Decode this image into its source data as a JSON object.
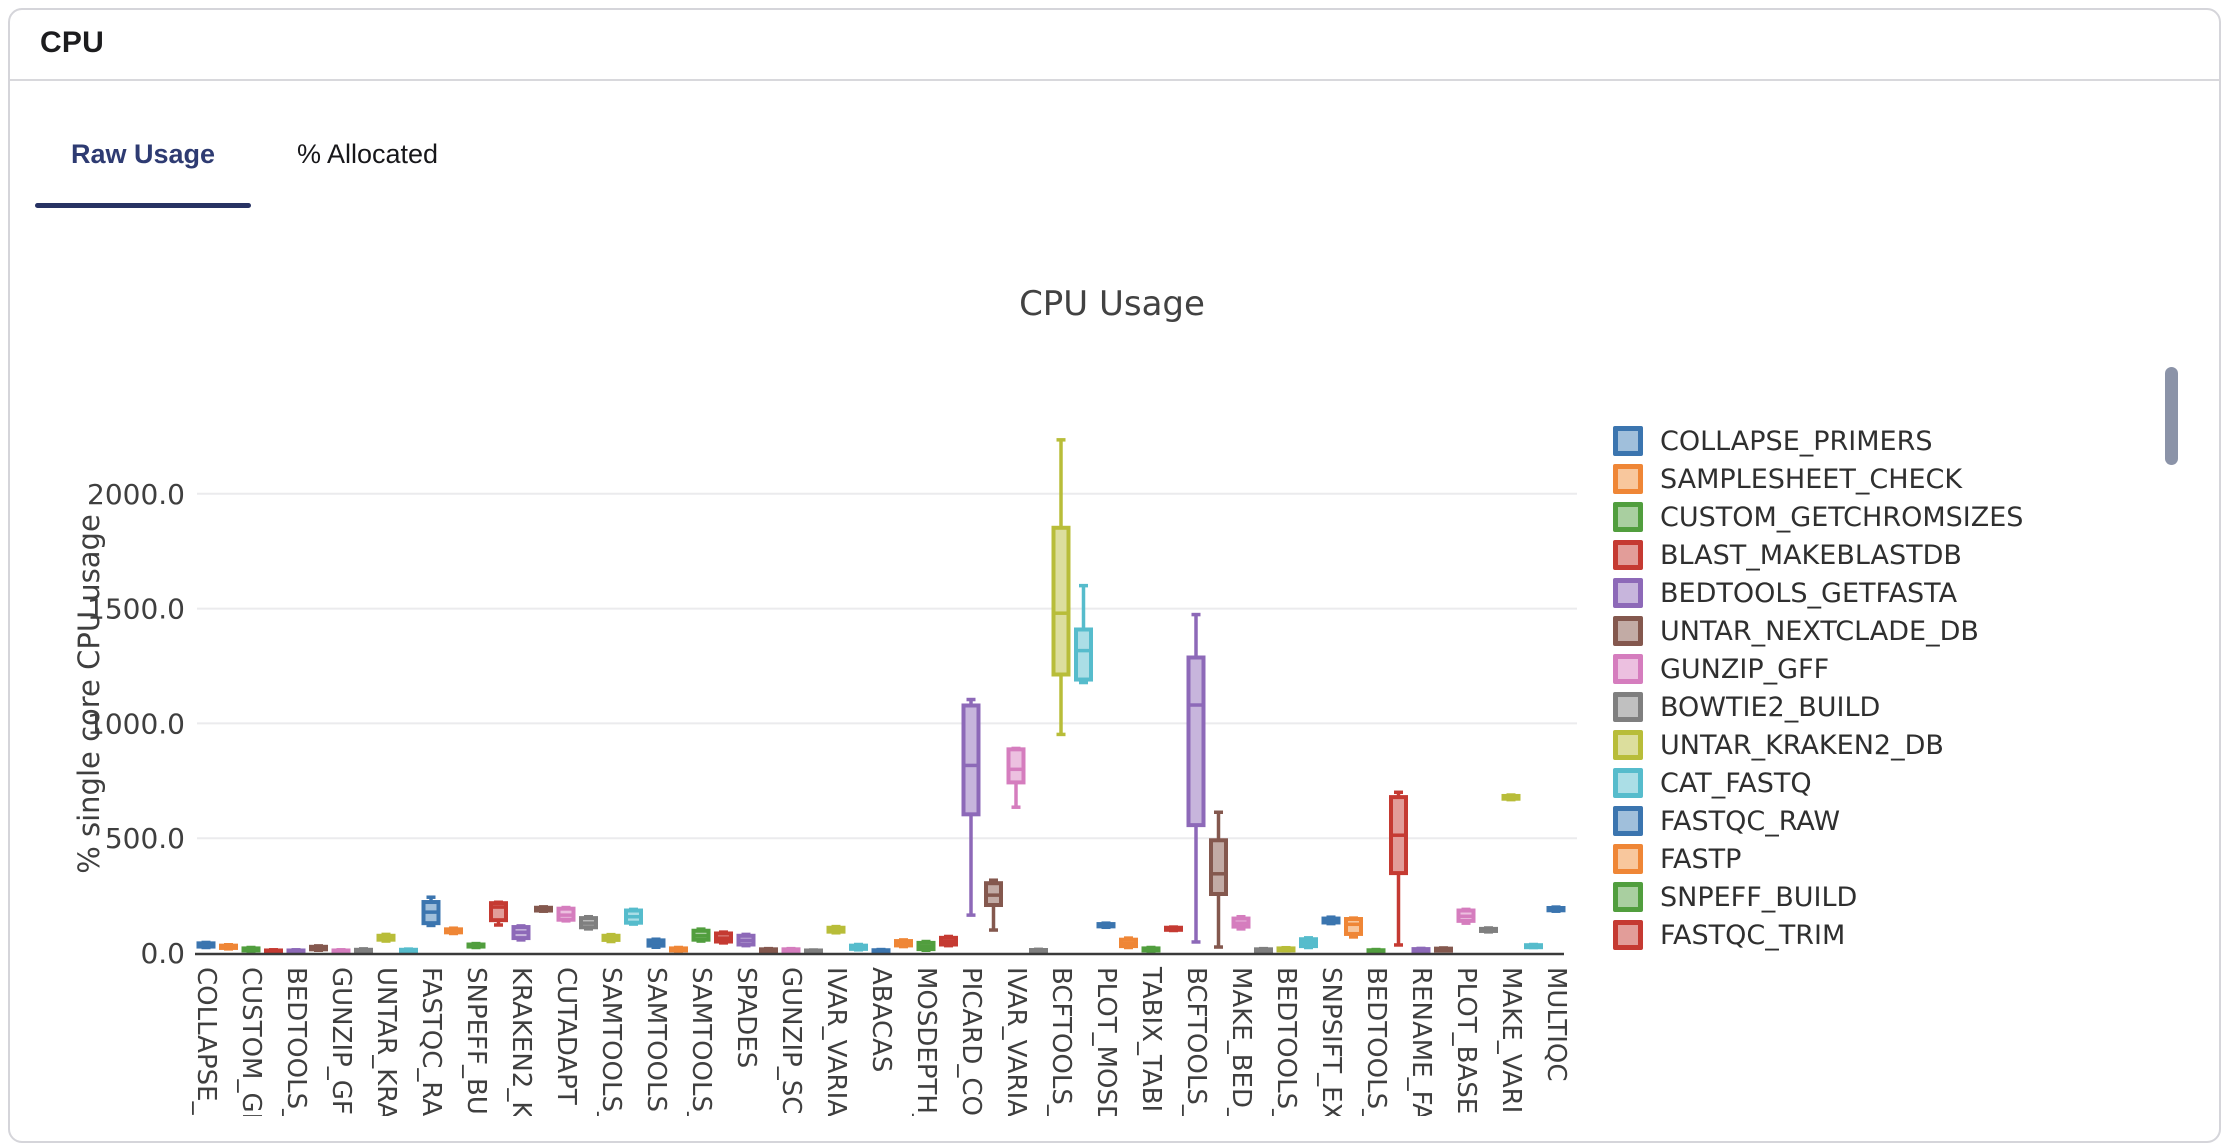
{
  "window": {
    "title": "CPU"
  },
  "tabs": [
    {
      "label": "Raw Usage",
      "active": true
    },
    {
      "label": "% Allocated",
      "active": false
    }
  ],
  "colors": {
    "card_border": "#d5d5da",
    "header_text": "#1c1c1e",
    "tab_active_text": "#2e3b72",
    "tab_underline": "#273263",
    "tab_inactive_text": "#17171a",
    "title_text": "#424242",
    "tick_text": "#3f3f3f",
    "axis_line": "#3a3a3a",
    "gridline": "#ebebed",
    "legend_text": "#2f2f2f",
    "scrollbar_thumb": "#8b93a8"
  },
  "chart_data": {
    "type": "box",
    "title": "CPU Usage",
    "xlabel": "",
    "ylabel": "% single core CPU usage",
    "ytick_values": [
      0,
      500,
      1000,
      1500,
      2000
    ],
    "ytick_labels": [
      "0.0",
      "500.0",
      "1000.0",
      "1500.0",
      "2000.0"
    ],
    "ylim": [
      0,
      2400
    ],
    "grid": true,
    "legend_position": "right",
    "color_cycle": [
      {
        "name": "blue",
        "stroke": "#3b75af",
        "fill": "#a0bfdb"
      },
      {
        "name": "orange",
        "stroke": "#ef8636",
        "fill": "#f8c79d"
      },
      {
        "name": "green",
        "stroke": "#519e3e",
        "fill": "#a9cfa0"
      },
      {
        "name": "red",
        "stroke": "#c53a32",
        "fill": "#e29d99"
      },
      {
        "name": "purple",
        "stroke": "#8d69b8",
        "fill": "#c7b5dc"
      },
      {
        "name": "brown",
        "stroke": "#84584e",
        "fill": "#c2aba5"
      },
      {
        "name": "pink",
        "stroke": "#d57dbe",
        "fill": "#ecc0e0"
      },
      {
        "name": "gray",
        "stroke": "#7f7f7f",
        "fill": "#c0c0c0"
      },
      {
        "name": "olive",
        "stroke": "#b8bd39",
        "fill": "#dcde9d"
      },
      {
        "name": "cyan",
        "stroke": "#56bccc",
        "fill": "#abdee6"
      }
    ],
    "legend": [
      {
        "label": "COLLAPSE_PRIMERS",
        "c": 0
      },
      {
        "label": "SAMPLESHEET_CHECK",
        "c": 1
      },
      {
        "label": "CUSTOM_GETCHROMSIZES",
        "c": 2
      },
      {
        "label": "BLAST_MAKEBLASTDB",
        "c": 3
      },
      {
        "label": "BEDTOOLS_GETFASTA",
        "c": 4
      },
      {
        "label": "UNTAR_NEXTCLADE_DB",
        "c": 5
      },
      {
        "label": "GUNZIP_GFF",
        "c": 6
      },
      {
        "label": "BOWTIE2_BUILD",
        "c": 7
      },
      {
        "label": "UNTAR_KRAKEN2_DB",
        "c": 8
      },
      {
        "label": "CAT_FASTQ",
        "c": 9
      },
      {
        "label": "FASTQC_RAW",
        "c": 0
      },
      {
        "label": "FASTP",
        "c": 1
      },
      {
        "label": "SNPEFF_BUILD",
        "c": 2
      },
      {
        "label": "FASTQC_TRIM",
        "c": 3
      }
    ],
    "boxes": [
      {
        "label": "COLLAPSE_P",
        "c": 0,
        "v": [
          24,
          28,
          35,
          42,
          46
        ]
      },
      {
        "label": "",
        "c": 1,
        "v": [
          18,
          22,
          27,
          32,
          36
        ]
      },
      {
        "label": "CUSTOM_GE",
        "c": 2,
        "v": [
          8,
          11,
          15,
          20,
          24
        ]
      },
      {
        "label": "",
        "c": 3,
        "v": [
          3,
          5,
          8,
          11,
          14
        ]
      },
      {
        "label": "BEDTOOLS_",
        "c": 4,
        "v": [
          3,
          5,
          8,
          11,
          14
        ]
      },
      {
        "label": "",
        "c": 5,
        "v": [
          12,
          16,
          21,
          27,
          31
        ]
      },
      {
        "label": "GUNZIP_GF",
        "c": 6,
        "v": [
          3,
          5,
          8,
          11,
          14
        ]
      },
      {
        "label": "",
        "c": 7,
        "v": [
          2,
          5,
          9,
          14,
          18
        ]
      },
      {
        "label": "UNTAR_KRA",
        "c": 8,
        "v": [
          52,
          58,
          66,
          75,
          81
        ]
      },
      {
        "label": "",
        "c": 9,
        "v": [
          3,
          6,
          9,
          14,
          17
        ]
      },
      {
        "label": "FASTQC_RA",
        "c": 0,
        "v": [
          120,
          130,
          178,
          222,
          243
        ]
      },
      {
        "label": "",
        "c": 1,
        "v": [
          85,
          90,
          96,
          103,
          108
        ]
      },
      {
        "label": "SNPEFF_BU",
        "c": 2,
        "v": [
          24,
          28,
          32,
          37,
          41
        ]
      },
      {
        "label": "",
        "c": 3,
        "v": [
          122,
          143,
          200,
          217,
          221
        ]
      },
      {
        "label": "KRAKEN2_K",
        "c": 4,
        "v": [
          57,
          65,
          90,
          113,
          118
        ]
      },
      {
        "label": "",
        "c": 5,
        "v": [
          182,
          185,
          190,
          197,
          201
        ]
      },
      {
        "label": "CUTADAPT",
        "c": 6,
        "v": [
          140,
          145,
          165,
          193,
          198
        ]
      },
      {
        "label": "",
        "c": 7,
        "v": [
          105,
          112,
          130,
          152,
          158
        ]
      },
      {
        "label": "SAMTOOLS_",
        "c": 8,
        "v": [
          50,
          57,
          64,
          75,
          80
        ]
      },
      {
        "label": "",
        "c": 9,
        "v": [
          126,
          132,
          158,
          185,
          190
        ]
      },
      {
        "label": "SAMTOOLS",
        "c": 0,
        "v": [
          25,
          32,
          44,
          55,
          60
        ]
      },
      {
        "label": "",
        "c": 1,
        "v": [
          8,
          11,
          15,
          20,
          24
        ]
      },
      {
        "label": "SAMTOOLS_",
        "c": 2,
        "v": [
          52,
          58,
          75,
          97,
          104
        ]
      },
      {
        "label": "",
        "c": 3,
        "v": [
          44,
          50,
          65,
          85,
          91
        ]
      },
      {
        "label": "SPADES",
        "c": 4,
        "v": [
          32,
          37,
          55,
          75,
          81
        ]
      },
      {
        "label": "",
        "c": 5,
        "v": [
          6,
          9,
          12,
          16,
          19
        ]
      },
      {
        "label": "GUNZIP_SC",
        "c": 6,
        "v": [
          6,
          9,
          12,
          16,
          19
        ]
      },
      {
        "label": "",
        "c": 7,
        "v": [
          3,
          5,
          8,
          11,
          13
        ]
      },
      {
        "label": "IVAR_VARIA",
        "c": 8,
        "v": [
          88,
          93,
          100,
          110,
          115
        ]
      },
      {
        "label": "",
        "c": 9,
        "v": [
          14,
          18,
          24,
          32,
          37
        ]
      },
      {
        "label": "ABACAS",
        "c": 0,
        "v": [
          4,
          6,
          9,
          12,
          15
        ]
      },
      {
        "label": "",
        "c": 1,
        "v": [
          28,
          33,
          41,
          52,
          57
        ]
      },
      {
        "label": "MOSDEPTH_",
        "c": 2,
        "v": [
          12,
          17,
          28,
          44,
          50
        ]
      },
      {
        "label": "",
        "c": 3,
        "v": [
          32,
          37,
          50,
          66,
          72
        ]
      },
      {
        "label": "PICARD_CO",
        "c": 4,
        "v": [
          165,
          604,
          817,
          1078,
          1104
        ]
      },
      {
        "label": "",
        "c": 5,
        "v": [
          100,
          209,
          252,
          304,
          317
        ]
      },
      {
        "label": "IVAR_VARIA",
        "c": 6,
        "v": [
          635,
          743,
          800,
          887,
          891
        ]
      },
      {
        "label": "",
        "c": 7,
        "v": [
          4,
          6,
          9,
          13,
          16
        ]
      },
      {
        "label": "BCFTOOLS_",
        "c": 8,
        "v": [
          952,
          1213,
          1480,
          1852,
          2235
        ]
      },
      {
        "label": "",
        "c": 9,
        "v": [
          1178,
          1191,
          1317,
          1409,
          1600
        ]
      },
      {
        "label": "PLOT_MOSD",
        "c": 0,
        "v": [
          112,
          116,
          120,
          126,
          130
        ]
      },
      {
        "label": "",
        "c": 1,
        "v": [
          24,
          30,
          42,
          58,
          65
        ]
      },
      {
        "label": "TABIX_TABI",
        "c": 2,
        "v": [
          8,
          11,
          15,
          20,
          24
        ]
      },
      {
        "label": "",
        "c": 3,
        "v": [
          98,
          101,
          105,
          110,
          113
        ]
      },
      {
        "label": "BCFTOOLS_",
        "c": 4,
        "v": [
          48,
          557,
          1080,
          1287,
          1474
        ]
      },
      {
        "label": "",
        "c": 5,
        "v": [
          26,
          257,
          345,
          491,
          613
        ]
      },
      {
        "label": "MAKE_BED_",
        "c": 6,
        "v": [
          105,
          115,
          130,
          150,
          158
        ]
      },
      {
        "label": "",
        "c": 7,
        "v": [
          6,
          9,
          12,
          16,
          19
        ]
      },
      {
        "label": "BEDTOOLS_",
        "c": 8,
        "v": [
          10,
          13,
          16,
          20,
          23
        ]
      },
      {
        "label": "",
        "c": 9,
        "v": [
          24,
          30,
          45,
          60,
          66
        ]
      },
      {
        "label": "SNPSIFT_EX",
        "c": 0,
        "v": [
          128,
          133,
          140,
          150,
          156
        ]
      },
      {
        "label": "",
        "c": 1,
        "v": [
          70,
          83,
          125,
          148,
          152
        ]
      },
      {
        "label": "BEDTOOLS_",
        "c": 2,
        "v": [
          4,
          6,
          9,
          12,
          15
        ]
      },
      {
        "label": "",
        "c": 3,
        "v": [
          35,
          348,
          513,
          679,
          700
        ]
      },
      {
        "label": "RENAME_FA",
        "c": 4,
        "v": [
          8,
          10,
          13,
          17,
          20
        ]
      },
      {
        "label": "",
        "c": 5,
        "v": [
          10,
          12,
          15,
          19,
          22
        ]
      },
      {
        "label": "PLOT_BASE",
        "c": 6,
        "v": [
          130,
          140,
          160,
          185,
          190
        ]
      },
      {
        "label": "",
        "c": 7,
        "v": [
          92,
          96,
          100,
          105,
          109
        ]
      },
      {
        "label": "MAKE_VARI",
        "c": 8,
        "v": [
          668,
          672,
          678,
          684,
          688
        ]
      },
      {
        "label": "",
        "c": 9,
        "v": [
          24,
          27,
          30,
          34,
          37
        ]
      },
      {
        "label": "MULTIQC",
        "c": 0,
        "v": [
          182,
          186,
          190,
          196,
          200
        ]
      }
    ]
  }
}
